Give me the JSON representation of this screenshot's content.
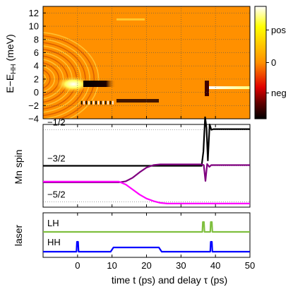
{
  "chart_data": [
    {
      "type": "heatmap",
      "ylabel": "E−E",
      "ylabel_sub": "HH",
      "ylabel_unit": " (meV)",
      "xlim": [
        -10,
        50
      ],
      "ylim": [
        -4,
        13
      ],
      "yticks": [
        "−4",
        "−2",
        "0",
        "2",
        "4",
        "6",
        "8",
        "10",
        "12"
      ],
      "ytick_values": [
        -4,
        -2,
        0,
        2,
        4,
        6,
        8,
        10,
        12
      ],
      "grid": true,
      "colorbar": {
        "labels": [
          "pos",
          "0",
          "neg"
        ],
        "label_positions": [
          0.79,
          0.5,
          0.23
        ],
        "colors_top_to_bottom": [
          "#ffffff",
          "#ffff00",
          "#ff9000",
          "#e00000",
          "#600000",
          "#000000"
        ]
      },
      "features": [
        {
          "x": [
            -10,
            0
          ],
          "y_center": 2.0,
          "description_only": true
        },
        {
          "x": [
            0,
            10
          ],
          "y": 2.0,
          "strength": "neg"
        },
        {
          "x": [
            10,
            24
          ],
          "y": -1.5,
          "strength": "neg"
        },
        {
          "x": [
            37,
            37
          ],
          "y": [
            -1,
            2.5
          ],
          "strength": "neg"
        },
        {
          "x": [
            38,
            50
          ],
          "y": 0.8,
          "strength": "pos"
        }
      ]
    },
    {
      "type": "line",
      "ylabel": "Mn spin",
      "xlim": [
        -10,
        50
      ],
      "levels": [
        {
          "label": "−1/2",
          "value": 1
        },
        {
          "label": "−3/2",
          "value": 0
        },
        {
          "label": "−5/2",
          "value": -1
        }
      ],
      "series": [
        {
          "color": "#000000",
          "x": [
            -10,
            36.0,
            36.5,
            37.0,
            37.4,
            37.8,
            38.3,
            38.8,
            39.5,
            50
          ],
          "y": [
            0,
            0,
            0.4,
            1.35,
            1.05,
            0.15,
            1.15,
            1.0,
            1.02,
            1.02
          ]
        },
        {
          "color": "#800080",
          "x": [
            -10,
            12,
            14,
            16,
            18,
            20,
            22,
            24,
            26,
            36.0,
            36.6,
            37.1,
            37.6,
            38.2,
            38.8,
            50
          ],
          "y": [
            -0.46,
            -0.46,
            -0.43,
            -0.33,
            -0.18,
            -0.05,
            0.02,
            0.04,
            0.04,
            0.04,
            0.02,
            -0.42,
            0.05,
            -0.03,
            0.02,
            0.02
          ]
        },
        {
          "color": "#ff00ff",
          "x": [
            -10,
            12,
            14,
            16,
            18,
            20,
            22,
            24,
            26,
            50
          ],
          "y": [
            -0.44,
            -0.44,
            -0.52,
            -0.66,
            -0.8,
            -0.91,
            -0.98,
            -1.03,
            -1.05,
            -1.05
          ]
        }
      ]
    },
    {
      "type": "line",
      "ylabel": "laser",
      "xlabel": "time t (ps) and delay τ (ps)",
      "xlim": [
        -10,
        50
      ],
      "xticks": [
        "0",
        "10",
        "20",
        "30",
        "40",
        "50"
      ],
      "xtick_values": [
        0,
        10,
        20,
        30,
        40,
        50
      ],
      "series": [
        {
          "name": "LH",
          "color": "#7fbf3f",
          "pulses": [
            36.5,
            38.8
          ]
        },
        {
          "name": "HH",
          "color": "#0000ff",
          "pulses": [
            0,
            38.8
          ],
          "plateau": [
            10,
            24
          ]
        }
      ]
    }
  ]
}
